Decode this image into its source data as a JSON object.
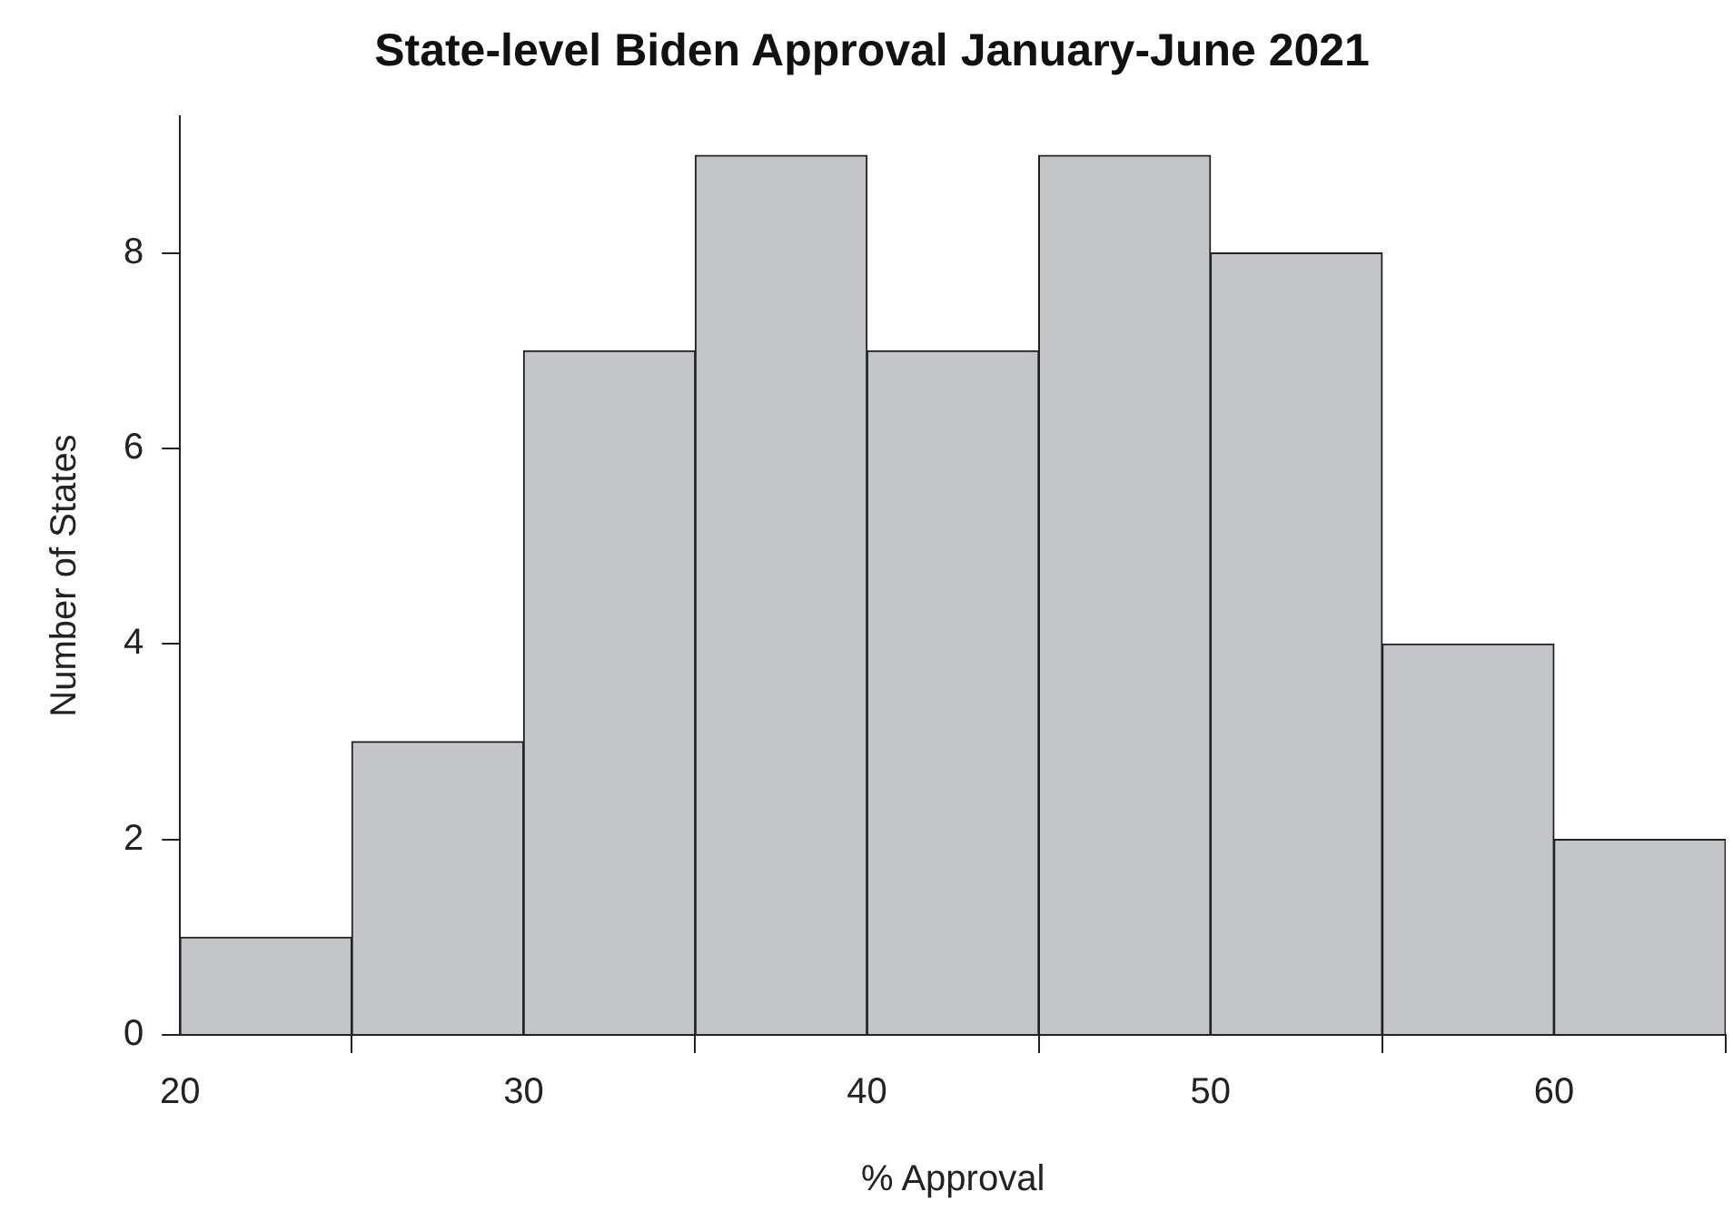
{
  "chart_data": {
    "type": "histogram",
    "title": "State-level Biden Approval January-June 2021",
    "xlabel": "% Approval",
    "ylabel": "Number of States",
    "bins": [
      20,
      25,
      30,
      35,
      40,
      45,
      50,
      55,
      60,
      65
    ],
    "values": [
      1,
      3,
      7,
      9,
      7,
      9,
      8,
      4,
      2
    ],
    "color": "#c4c5c9",
    "xlim": [
      20,
      65
    ],
    "xticks": [
      20,
      30,
      40,
      50,
      60
    ],
    "ylim": [
      0,
      9.4
    ],
    "yticks": [
      0,
      2,
      4,
      6,
      8
    ],
    "grid": false,
    "legend": false
  }
}
